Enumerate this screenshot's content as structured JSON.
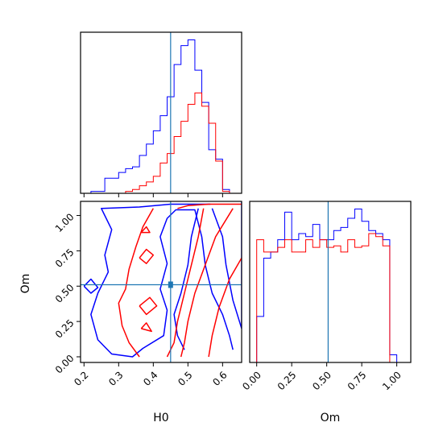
{
  "chart_data": {
    "type": "corner",
    "parameters": [
      "H0",
      "Om"
    ],
    "truth": {
      "H0": 0.45,
      "Om": 0.51
    },
    "colors": {
      "series_a": "#0000ff",
      "series_b": "#ff0000",
      "truth": "#1f77b4"
    },
    "panels": [
      {
        "id": "hist_H0",
        "type": "histogram",
        "xlim": [
          0.19,
          0.655
        ],
        "x_ticks_labeled": false,
        "y_ticks": false,
        "bin_edges": [
          0.2,
          0.22,
          0.24,
          0.26,
          0.28,
          0.3,
          0.32,
          0.34,
          0.36,
          0.38,
          0.4,
          0.42,
          0.44,
          0.46,
          0.48,
          0.5,
          0.52,
          0.54,
          0.56,
          0.58,
          0.6,
          0.62,
          0.64
        ],
        "series": [
          {
            "color": "#0000ff",
            "counts": [
              0,
              1,
              1,
              8,
              8,
              11,
              13,
              14,
              20,
              26,
              33,
              41,
              51,
              68,
              78,
              81,
              65,
              48,
              23,
              18,
              2,
              0
            ]
          },
          {
            "color": "#ff0000",
            "counts": [
              0,
              0,
              0,
              0,
              0,
              0,
              1,
              2,
              4,
              6,
              9,
              16,
              21,
              30,
              38,
              47,
              53,
              46,
              37,
              17,
              1,
              0
            ]
          }
        ]
      },
      {
        "id": "hist_Om",
        "type": "histogram",
        "xlim": [
          -0.05,
          1.1
        ],
        "xticks": [
          "0.00",
          "0.25",
          "0.50",
          "0.75",
          "1.00"
        ],
        "xlabel": "Om",
        "bin_edges": [
          -0.04,
          0.0,
          0.05,
          0.1,
          0.15,
          0.2,
          0.25,
          0.3,
          0.35,
          0.4,
          0.45,
          0.5,
          0.55,
          0.6,
          0.65,
          0.7,
          0.75,
          0.8,
          0.85,
          0.9,
          0.95,
          1.0,
          1.05,
          1.1
        ],
        "series": [
          {
            "color": "#0000ff",
            "counts": [
              0,
              30,
              68,
              72,
              80,
              98,
              80,
              84,
              82,
              90,
              80,
              80,
              86,
              88,
              94,
              100,
              92,
              86,
              84,
              80,
              5,
              0,
              0
            ]
          },
          {
            "color": "#ff0000",
            "counts": [
              0,
              80,
              72,
              72,
              75,
              80,
              72,
              72,
              80,
              75,
              80,
              75,
              76,
              72,
              80,
              75,
              76,
              84,
              82,
              76,
              0,
              0,
              0
            ]
          }
        ]
      },
      {
        "id": "joint_H0_Om",
        "type": "contour",
        "xlim": [
          0.19,
          0.655
        ],
        "ylim": [
          -0.04,
          1.1
        ],
        "xticks": [
          "0.2",
          "0.3",
          "0.4",
          "0.5",
          "0.6"
        ],
        "yticks": [
          "0.00",
          "0.25",
          "0.50",
          "0.75",
          "1.00"
        ],
        "xlabel": "H0",
        "ylabel": "Om",
        "series": [
          {
            "color": "#0000ff",
            "contours": [
              [
                [
                  0.565,
                  1.08
                ],
                [
                  0.45,
                  1.08
                ],
                [
                  0.36,
                  1.06
                ],
                [
                  0.25,
                  1.05
                ],
                [
                  0.28,
                  0.9
                ],
                [
                  0.26,
                  0.72
                ],
                [
                  0.27,
                  0.6
                ],
                [
                  0.24,
                  0.45
                ],
                [
                  0.22,
                  0.3
                ],
                [
                  0.24,
                  0.12
                ],
                [
                  0.28,
                  0.02
                ],
                [
                  0.34,
                  0.0
                ],
                [
                  0.37,
                  0.06
                ],
                [
                  0.43,
                  0.15
                ],
                [
                  0.44,
                  0.33
                ],
                [
                  0.42,
                  0.48
                ],
                [
                  0.44,
                  0.66
                ],
                [
                  0.42,
                  0.85
                ],
                [
                  0.44,
                  0.98
                ],
                [
                  0.465,
                  1.04
                ],
                [
                  0.52,
                  1.04
                ],
                [
                  0.54,
                  0.85
                ],
                [
                  0.55,
                  0.65
                ],
                [
                  0.57,
                  0.45
                ],
                [
                  0.6,
                  0.3
                ],
                [
                  0.62,
                  0.15
                ],
                [
                  0.63,
                  0.05
                ]
              ],
              [
                [
                  0.655,
                  1.1
                ],
                [
                  0.655,
                  0.2
                ],
                [
                  0.63,
                  0.4
                ],
                [
                  0.61,
                  0.65
                ],
                [
                  0.6,
                  0.85
                ],
                [
                  0.57,
                  1.05
                ]
              ],
              [
                [
                  0.49,
                  0.05
                ],
                [
                  0.47,
                  0.15
                ],
                [
                  0.46,
                  0.3
                ],
                [
                  0.48,
                  0.45
                ],
                [
                  0.5,
                  0.65
                ],
                [
                  0.51,
                  0.85
                ],
                [
                  0.53,
                  1.05
                ]
              ],
              [
                [
                  0.2,
                  0.5
                ],
                [
                  0.22,
                  0.55
                ],
                [
                  0.24,
                  0.49
                ],
                [
                  0.22,
                  0.45
                ],
                [
                  0.2,
                  0.5
                ]
              ]
            ]
          },
          {
            "color": "#ff0000",
            "contours": [
              [
                [
                  0.4,
                  1.05
                ],
                [
                  0.37,
                  0.92
                ],
                [
                  0.35,
                  0.78
                ],
                [
                  0.33,
                  0.62
                ],
                [
                  0.32,
                  0.48
                ],
                [
                  0.3,
                  0.38
                ],
                [
                  0.31,
                  0.22
                ],
                [
                  0.33,
                  0.1
                ],
                [
                  0.36,
                  0.0
                ]
              ],
              [
                [
                  0.63,
                  1.05
                ],
                [
                  0.58,
                  0.85
                ],
                [
                  0.55,
                  0.65
                ],
                [
                  0.52,
                  0.45
                ],
                [
                  0.5,
                  0.25
                ],
                [
                  0.49,
                  0.1
                ],
                [
                  0.48,
                  0.0
                ]
              ],
              [
                [
                  0.545,
                  1.05
                ],
                [
                  0.53,
                  0.85
                ],
                [
                  0.51,
                  0.65
                ],
                [
                  0.49,
                  0.45
                ],
                [
                  0.47,
                  0.25
                ],
                [
                  0.46,
                  0.1
                ],
                [
                  0.44,
                  0.0
                ]
              ],
              [
                [
                  0.47,
                  1.05
                ],
                [
                  0.5,
                  1.07
                ],
                [
                  0.56,
                  1.08
                ],
                [
                  0.62,
                  1.08
                ],
                [
                  0.655,
                  1.08
                ]
              ],
              [
                [
                  0.655,
                  0.7
                ],
                [
                  0.62,
                  0.55
                ],
                [
                  0.59,
                  0.35
                ],
                [
                  0.57,
                  0.15
                ],
                [
                  0.56,
                  0.0
                ]
              ],
              [
                [
                  0.365,
                  0.88
                ],
                [
                  0.38,
                  0.92
                ],
                [
                  0.39,
                  0.88
                ],
                [
                  0.365,
                  0.88
                ]
              ],
              [
                [
                  0.36,
                  0.7
                ],
                [
                  0.38,
                  0.76
                ],
                [
                  0.4,
                  0.72
                ],
                [
                  0.38,
                  0.66
                ],
                [
                  0.36,
                  0.7
                ]
              ],
              [
                [
                  0.36,
                  0.36
                ],
                [
                  0.39,
                  0.42
                ],
                [
                  0.41,
                  0.36
                ],
                [
                  0.38,
                  0.3
                ],
                [
                  0.36,
                  0.36
                ]
              ],
              [
                [
                  0.365,
                  0.2
                ],
                [
                  0.38,
                  0.24
                ],
                [
                  0.395,
                  0.18
                ],
                [
                  0.365,
                  0.2
                ]
              ]
            ]
          }
        ]
      }
    ]
  }
}
